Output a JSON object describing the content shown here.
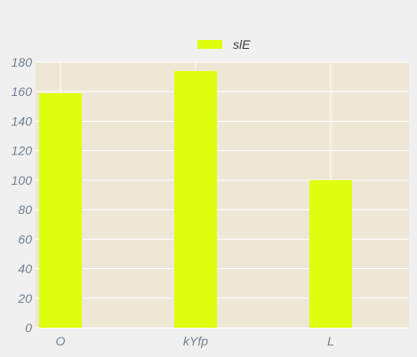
{
  "chart_data": {
    "type": "bar",
    "categories": [
      "O",
      "kYfp",
      "L"
    ],
    "series": [
      {
        "name": "slE",
        "values": [
          159,
          174,
          100
        ],
        "color": "#dfff11"
      }
    ],
    "ylim": [
      0,
      180
    ],
    "yticks": [
      0,
      20,
      40,
      60,
      80,
      100,
      120,
      140,
      160,
      180
    ],
    "grid": true,
    "legend_position": "top-center",
    "colors": {
      "page_background": "#f0f0f0",
      "plot_background": "#efe7d6",
      "grid": "#ffffff",
      "tick_text": "#708090"
    }
  }
}
